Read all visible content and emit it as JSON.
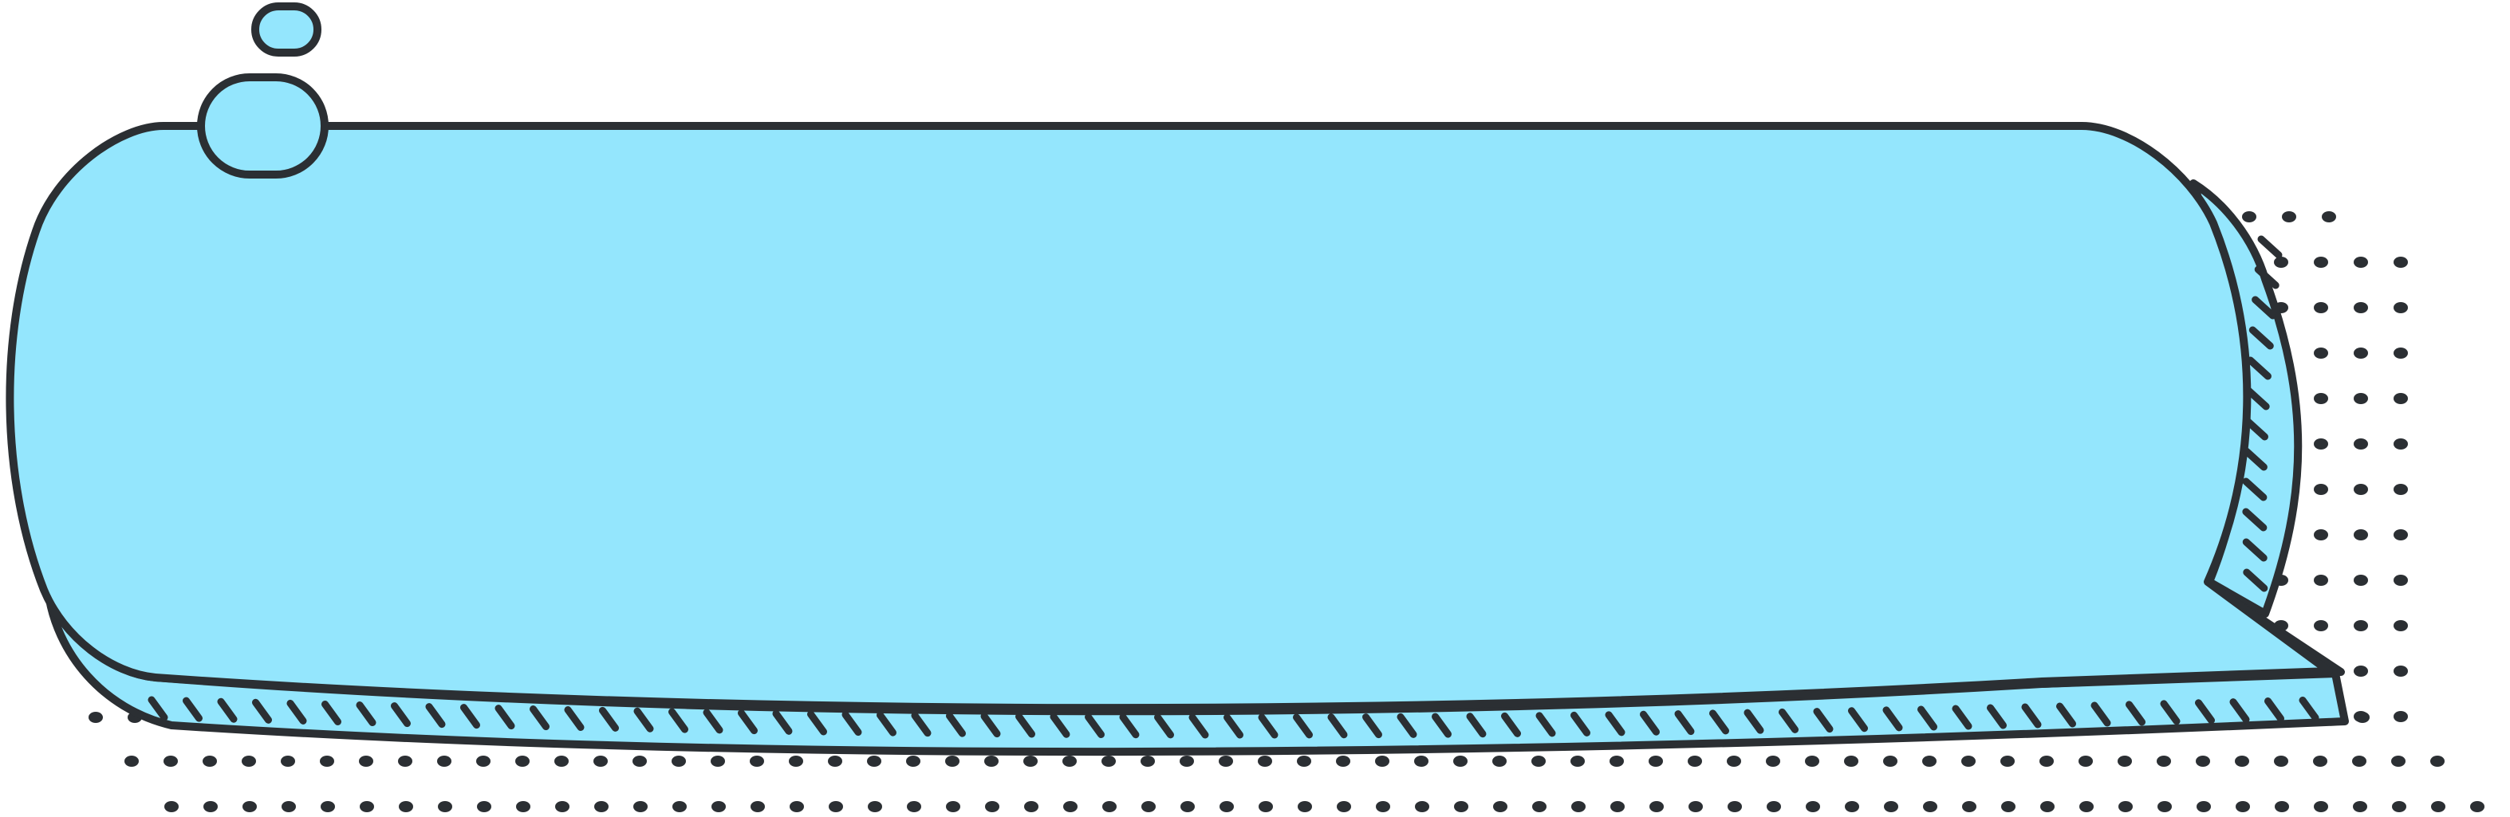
{
  "banner": {
    "label": ""
  },
  "colors": {
    "fill": "#94E6FD",
    "outline": "#2B2F33",
    "dots": "#2B2F33",
    "background": "#FFFFFF"
  },
  "icons": {
    "bubble_large": "speech-bubble-small-circle",
    "bubble_small": "speech-bubble-tiny-circle"
  }
}
